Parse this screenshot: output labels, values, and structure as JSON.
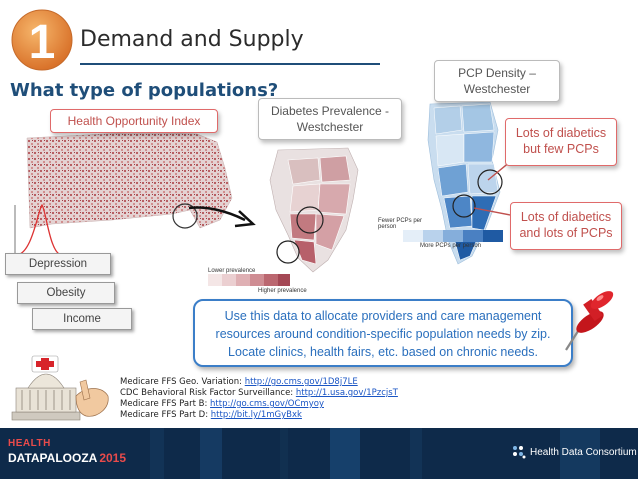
{
  "header": {
    "number": "1",
    "title": "Demand and Supply",
    "question": "What type of populations?"
  },
  "callouts": {
    "hoi": "Health Opportunity Index",
    "diabetes": [
      "Diabetes Prevalence -",
      "Westchester"
    ],
    "pcp_density": [
      "PCP Density –",
      "Westchester"
    ],
    "few_pcps": [
      "Lots of diabetics",
      "but few PCPs"
    ],
    "lots_pcps": [
      "Lots of diabetics",
      "and lots of PCPs"
    ]
  },
  "indicators": [
    "Depression",
    "Obesity",
    "Income"
  ],
  "diabetes_legend": {
    "low": "Lower prevalence",
    "high": "Higher prevalence"
  },
  "pcp_legend": {
    "fewer": "Fewer PCPs per person",
    "more": "More PCPs per person"
  },
  "message": [
    "Use this data to allocate providers and care management",
    "resources around condition-specific population needs by zip.",
    "Locate clinics, health fairs, etc. based on chronic needs."
  ],
  "sources": [
    {
      "label": "Medicare FFS Geo. Variation: ",
      "link": "http://go.cms.gov/1D8j7LE"
    },
    {
      "label": "CDC Behavioral Risk Factor Surveillance: ",
      "link": "http://1.usa.gov/1PzcjsT"
    },
    {
      "label": "Medicare FFS Part B: ",
      "link": "http://go.cms.gov/OCmyoy"
    },
    {
      "label": "Medicare FFS Part D: ",
      "link": "http://bit.ly/1mGyBxk"
    }
  ],
  "footer": {
    "logo_line1": "HEALTH",
    "logo_line2": "DATAPALOOZA",
    "logo_year": "2015",
    "partner": "Health Data Consortium"
  },
  "colors": {
    "accent_blue": "#1f4e79",
    "callout_red": "#c0504d",
    "message_blue": "#2a6fbd",
    "footer_bg": "#0e2a4a",
    "badge_orange": "#e8923a"
  }
}
